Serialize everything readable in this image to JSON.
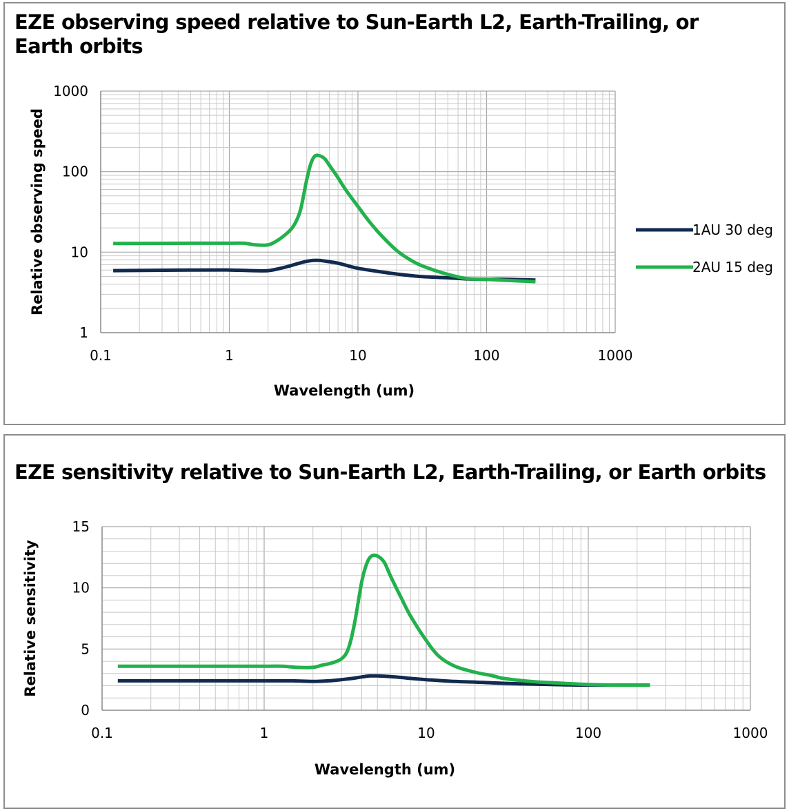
{
  "colors": {
    "series_1AU": "#112a4f",
    "series_2AU": "#22b14c",
    "grid": "#a6a6a6",
    "frame": "#8c8c8c"
  },
  "chart_data": [
    {
      "type": "line",
      "title": "EZE observing speed relative to Sun-Earth L2, Earth-Trailing, or Earth orbits",
      "xlabel": "Wavelength (um)",
      "ylabel": "Relative observing speed",
      "xscale": "log",
      "yscale": "log",
      "xlim": [
        0.1,
        1000
      ],
      "ylim": [
        1,
        1000
      ],
      "xticks": [
        "0.1",
        "1",
        "10",
        "100",
        "1000"
      ],
      "yticks": [
        "1",
        "10",
        "100",
        "1000"
      ],
      "grid": true,
      "legend": "right",
      "series": [
        {
          "name": "1AU 30 deg",
          "color": "#112a4f",
          "x": [
            0.125,
            0.5,
            1.0,
            1.5,
            2.0,
            2.5,
            3.0,
            3.5,
            4.0,
            4.5,
            5.0,
            6.0,
            7.0,
            8.0,
            10.0,
            15.0,
            20.0,
            30.0,
            50.0,
            70.0,
            100.0,
            150.0,
            240.0
          ],
          "y": [
            5.9,
            6.0,
            6.0,
            5.9,
            5.9,
            6.3,
            6.8,
            7.3,
            7.7,
            7.9,
            7.9,
            7.6,
            7.3,
            6.9,
            6.3,
            5.7,
            5.35,
            5.0,
            4.8,
            4.65,
            4.6,
            4.6,
            4.5
          ]
        },
        {
          "name": "2AU 15 deg",
          "color": "#22b14c",
          "x": [
            0.125,
            0.5,
            1.0,
            1.3,
            1.6,
            2.0,
            2.3,
            2.6,
            3.0,
            3.3,
            3.6,
            4.0,
            4.3,
            4.6,
            5.0,
            5.5,
            6.0,
            7.0,
            8.0,
            10.0,
            12.0,
            15.0,
            20.0,
            25.0,
            30.0,
            40.0,
            50.0,
            70.0,
            100.0,
            150.0,
            240.0
          ],
          "y": [
            12.8,
            12.9,
            12.9,
            12.9,
            12.3,
            12.3,
            13.6,
            15.5,
            19.0,
            24.0,
            35.0,
            80.0,
            125.0,
            155.0,
            158.0,
            145.0,
            120.0,
            84.0,
            60.0,
            37.0,
            25.0,
            16.5,
            10.5,
            8.2,
            7.0,
            5.9,
            5.3,
            4.7,
            4.6,
            4.45,
            4.3
          ]
        }
      ]
    },
    {
      "type": "line",
      "title": "EZE sensitivity relative to Sun-Earth L2, Earth-Trailing, or Earth orbits",
      "xlabel": "Wavelength (um)",
      "ylabel": "Relative sensitivity",
      "xscale": "log",
      "yscale": "linear",
      "xlim": [
        0.1,
        1000
      ],
      "ylim": [
        0,
        15
      ],
      "xticks": [
        "0.1",
        "1",
        "10",
        "100",
        "1000"
      ],
      "yticks": [
        "0",
        "5",
        "10",
        "15"
      ],
      "grid": true,
      "legend": "none",
      "series": [
        {
          "color": "#112a4f",
          "x": [
            0.125,
            0.5,
            1.0,
            1.5,
            2.0,
            2.5,
            3.0,
            3.5,
            4.0,
            4.5,
            5.0,
            6.0,
            7.0,
            8.0,
            10.0,
            15.0,
            20.0,
            30.0,
            50.0,
            70.0,
            100.0,
            150.0,
            240.0
          ],
          "y": [
            2.4,
            2.4,
            2.4,
            2.4,
            2.35,
            2.4,
            2.5,
            2.6,
            2.72,
            2.8,
            2.8,
            2.75,
            2.68,
            2.6,
            2.5,
            2.35,
            2.3,
            2.2,
            2.12,
            2.08,
            2.05,
            2.05,
            2.05
          ]
        },
        {
          "color": "#22b14c",
          "x": [
            0.125,
            0.5,
            1.0,
            1.3,
            1.6,
            2.0,
            2.3,
            2.6,
            3.0,
            3.3,
            3.6,
            4.0,
            4.3,
            4.6,
            5.0,
            5.5,
            6.0,
            7.0,
            8.0,
            10.0,
            12.0,
            15.0,
            20.0,
            25.0,
            30.0,
            40.0,
            50.0,
            70.0,
            100.0,
            150.0,
            240.0
          ],
          "y": [
            3.6,
            3.6,
            3.6,
            3.6,
            3.5,
            3.5,
            3.7,
            3.85,
            4.2,
            5.0,
            7.0,
            10.5,
            12.0,
            12.6,
            12.6,
            12.1,
            11.0,
            9.2,
            7.7,
            5.7,
            4.4,
            3.6,
            3.1,
            2.85,
            2.6,
            2.4,
            2.3,
            2.2,
            2.1,
            2.05,
            2.05
          ]
        }
      ]
    }
  ]
}
